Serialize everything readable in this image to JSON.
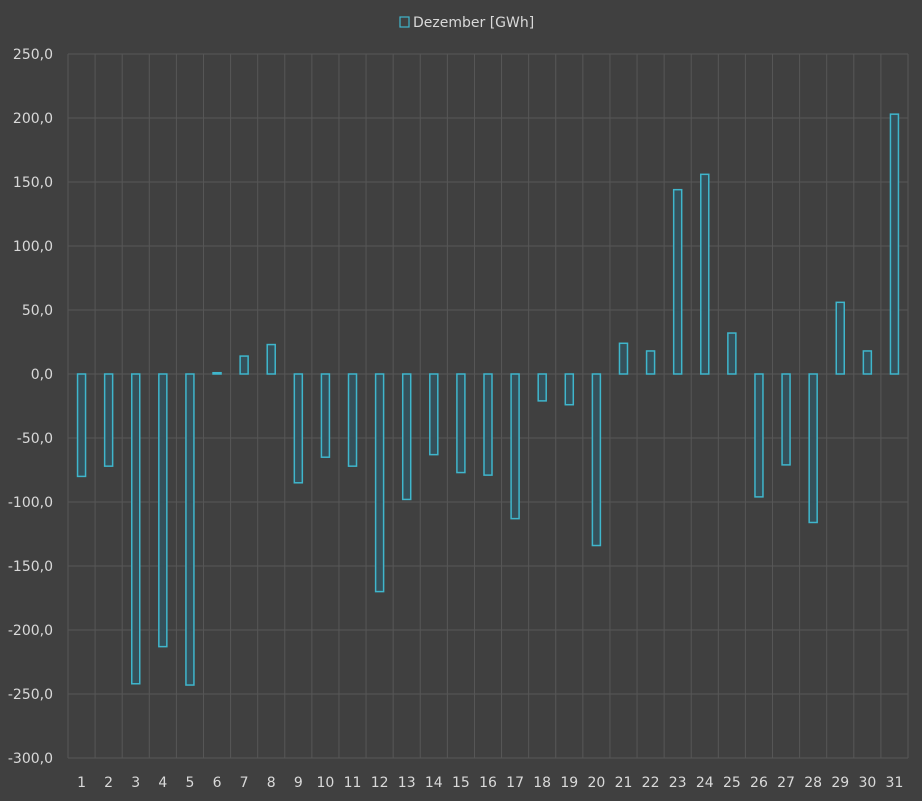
{
  "chart_data": {
    "type": "bar",
    "categories": [
      "1",
      "2",
      "3",
      "4",
      "5",
      "6",
      "7",
      "8",
      "9",
      "10",
      "11",
      "12",
      "13",
      "14",
      "15",
      "16",
      "17",
      "18",
      "19",
      "20",
      "21",
      "22",
      "23",
      "24",
      "25",
      "26",
      "27",
      "28",
      "29",
      "30",
      "31"
    ],
    "series": [
      {
        "name": "Dezember [GWh]",
        "values": [
          -80,
          -72,
          -242,
          -213,
          -243,
          1,
          14,
          23,
          -85,
          -65,
          -72,
          -170,
          -98,
          -63,
          -77,
          -79,
          -113,
          -21,
          -24,
          -134,
          24,
          18,
          144,
          156,
          32,
          -96,
          -71,
          -116,
          56,
          18,
          203
        ]
      }
    ],
    "ylim": [
      -300,
      250
    ],
    "yticks": [
      "250,0",
      "200,0",
      "150,0",
      "100,0",
      "50,0",
      "0,0",
      "-50,0",
      "-100,0",
      "-150,0",
      "-200,0",
      "-250,0",
      "-300,0"
    ],
    "ytick_values": [
      250,
      200,
      150,
      100,
      50,
      0,
      -50,
      -100,
      -150,
      -200,
      -250,
      -300
    ],
    "legend_position": "top-center",
    "grid": true,
    "colors": {
      "background": "#404040",
      "grid": "#575757",
      "bar_stroke": "#3fb6cc",
      "bar_fill": "#35505a",
      "text": "#d9d9d9"
    }
  }
}
